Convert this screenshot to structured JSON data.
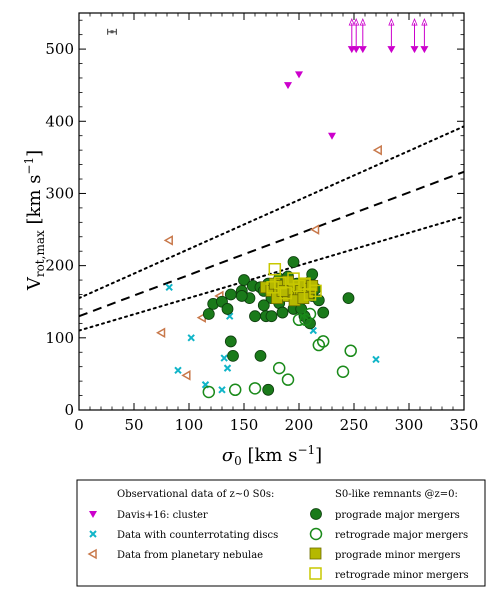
{
  "chart_data": {
    "type": "scatter",
    "xlabel_symbol": "σ",
    "xlabel_sub": "0",
    "xlabel_unit_open": " [km s",
    "xlabel_unit_exp": "−1",
    "xlabel_unit_close": "]",
    "ylabel_symbol": "V",
    "ylabel_sub": "rot,max",
    "ylabel_unit_open": " [km s",
    "ylabel_unit_exp": "−1",
    "ylabel_unit_close": "]",
    "xlim": [
      0,
      350
    ],
    "ylim": [
      0,
      550
    ],
    "xticks": [
      "0",
      "50",
      "100",
      "150",
      "200",
      "250",
      "300",
      "350"
    ],
    "yticks": [
      "0",
      "100",
      "200",
      "300",
      "400",
      "500"
    ],
    "xtick_values": [
      0,
      50,
      100,
      150,
      200,
      250,
      300,
      350
    ],
    "ytick_values": [
      0,
      100,
      200,
      300,
      400,
      500
    ],
    "lines": [
      {
        "style": "dashed",
        "x": [
          0,
          350
        ],
        "y": [
          130,
          330
        ]
      },
      {
        "style": "dotted",
        "x": [
          0,
          350
        ],
        "y": [
          155,
          393
        ]
      },
      {
        "style": "dotted",
        "x": [
          0,
          350
        ],
        "y": [
          110,
          268
        ]
      }
    ],
    "errorbar": {
      "x": 30,
      "y": 524,
      "xerr": 4,
      "color": "#555555"
    },
    "series": [
      {
        "name": "Davis+16: cluster",
        "marker": "triangle-down",
        "color": "#cc00cc",
        "filled": true,
        "points": [
          [
            190,
            450
          ],
          [
            200,
            465
          ],
          [
            230,
            380
          ],
          [
            248,
            500
          ],
          [
            252,
            500
          ],
          [
            258,
            500
          ],
          [
            284,
            500
          ],
          [
            305,
            500
          ],
          [
            314,
            500
          ]
        ],
        "upper_limit_x": [
          248,
          252,
          258,
          284,
          305,
          314
        ]
      },
      {
        "name": "Data with counterrotating discs",
        "marker": "x",
        "color": "#11b5c8",
        "filled": false,
        "points": [
          [
            82,
            170
          ],
          [
            90,
            55
          ],
          [
            102,
            100
          ],
          [
            115,
            35
          ],
          [
            132,
            72
          ],
          [
            135,
            58
          ],
          [
            137,
            130
          ],
          [
            213,
            110
          ],
          [
            270,
            70
          ],
          [
            130,
            28
          ]
        ]
      },
      {
        "name": "Data from planetary nebulae",
        "marker": "triangle-left",
        "color": "#c8784a",
        "filled": false,
        "points": [
          [
            82,
            235
          ],
          [
            98,
            48
          ],
          [
            112,
            128
          ],
          [
            128,
            158
          ],
          [
            75,
            107
          ],
          [
            215,
            250
          ],
          [
            272,
            360
          ]
        ]
      },
      {
        "name": "prograde major mergers",
        "marker": "circle",
        "color": "#1a7a1a",
        "filled": true,
        "points": [
          [
            118,
            133
          ],
          [
            122,
            147
          ],
          [
            130,
            150
          ],
          [
            135,
            140
          ],
          [
            138,
            160
          ],
          [
            148,
            165
          ],
          [
            150,
            180
          ],
          [
            155,
            155
          ],
          [
            158,
            172
          ],
          [
            165,
            170
          ],
          [
            168,
            165
          ],
          [
            172,
            175
          ],
          [
            175,
            155
          ],
          [
            178,
            168
          ],
          [
            182,
            182
          ],
          [
            185,
            165
          ],
          [
            188,
            172
          ],
          [
            190,
            185
          ],
          [
            192,
            160
          ],
          [
            195,
            205
          ],
          [
            198,
            175
          ],
          [
            200,
            150
          ],
          [
            205,
            170
          ],
          [
            210,
            178
          ],
          [
            212,
            158
          ],
          [
            215,
            168
          ],
          [
            218,
            152
          ],
          [
            222,
            135
          ],
          [
            195,
            140
          ],
          [
            182,
            148
          ],
          [
            168,
            145
          ],
          [
            170,
            130
          ],
          [
            185,
            135
          ],
          [
            205,
            130
          ],
          [
            210,
            120
          ],
          [
            165,
            75
          ],
          [
            172,
            28
          ],
          [
            245,
            155
          ],
          [
            140,
            75
          ],
          [
            138,
            95
          ],
          [
            160,
            130
          ],
          [
            175,
            130
          ],
          [
            202,
            140
          ],
          [
            148,
            158
          ],
          [
            212,
            188
          ]
        ]
      },
      {
        "name": "retrograde major mergers",
        "marker": "circle",
        "color": "#1a7a1a",
        "filled": false,
        "points": [
          [
            118,
            25
          ],
          [
            142,
            28
          ],
          [
            160,
            30
          ],
          [
            182,
            58
          ],
          [
            190,
            42
          ],
          [
            206,
            125
          ],
          [
            210,
            133
          ],
          [
            218,
            90
          ],
          [
            222,
            95
          ],
          [
            240,
            53
          ],
          [
            247,
            82
          ],
          [
            200,
            125
          ]
        ]
      },
      {
        "name": "prograde minor mergers",
        "marker": "square",
        "color": "#b5b800",
        "filled": true,
        "points": [
          [
            170,
            170
          ],
          [
            175,
            165
          ],
          [
            178,
            175
          ],
          [
            182,
            160
          ],
          [
            185,
            172
          ],
          [
            188,
            158
          ],
          [
            192,
            168
          ],
          [
            195,
            162
          ],
          [
            198,
            172
          ],
          [
            200,
            158
          ],
          [
            202,
            165
          ],
          [
            205,
            175
          ],
          [
            208,
            162
          ],
          [
            210,
            168
          ],
          [
            180,
            155
          ],
          [
            190,
            178
          ],
          [
            196,
            152
          ],
          [
            204,
            155
          ],
          [
            212,
            172
          ],
          [
            185,
            165
          ]
        ]
      },
      {
        "name": "retrograde minor mergers",
        "marker": "square",
        "color": "#c8c800",
        "filled": false,
        "points": [
          [
            178,
            195
          ],
          [
            195,
            182
          ],
          [
            205,
            175
          ],
          [
            210,
            160
          ],
          [
            188,
            162
          ],
          [
            200,
            172
          ],
          [
            215,
            165
          ],
          [
            176,
            170
          ],
          [
            183,
            176
          ]
        ]
      }
    ],
    "legend": {
      "placement": "below",
      "left_title": "Observational data of z~0 S0s:",
      "right_title": "S0-like remnants @z=0:",
      "left_entries": [
        "Davis+16: cluster",
        "Data with counterrotating discs",
        "Data from planetary nebulae"
      ],
      "right_entries": [
        "prograde major mergers",
        "retrograde major mergers",
        "prograde minor mergers",
        "retrograde minor mergers"
      ]
    }
  }
}
